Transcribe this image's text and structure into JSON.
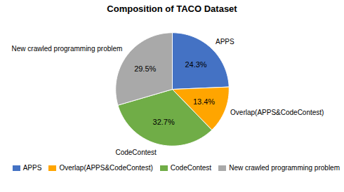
{
  "chart_data": {
    "type": "pie",
    "title": "Composition of TACO Dataset",
    "categories": [
      "APPS",
      "Overlap(APPS&CodeContest)",
      "CodeContest",
      "New crawled programming problem"
    ],
    "values": [
      24.3,
      13.4,
      32.7,
      29.5
    ],
    "value_labels": [
      "24.3%",
      "13.4%",
      "32.7%",
      "29.5%"
    ],
    "colors": [
      "#4472C4",
      "#FFA500",
      "#70AD47",
      "#A9A9A9"
    ],
    "data_labels": true,
    "legend": "lower right"
  }
}
